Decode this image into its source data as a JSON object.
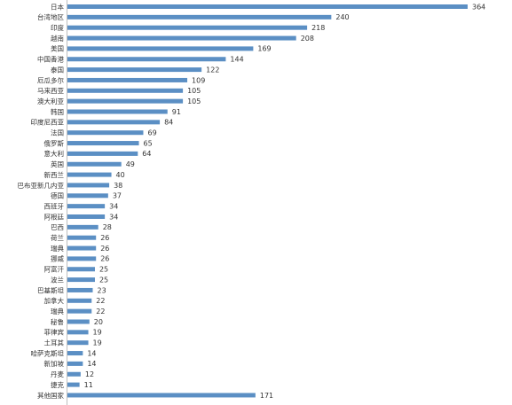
{
  "chart_data": {
    "type": "bar",
    "orientation": "horizontal",
    "title": "",
    "xlabel": "",
    "ylabel": "",
    "xlim": [
      0,
      364
    ],
    "grid": false,
    "legend": "none",
    "bar_color": "#5b8fc4",
    "categories": [
      "日本",
      "台湾地区",
      "印度",
      "越南",
      "美国",
      "中国香港",
      "泰国",
      "厄瓜多尔",
      "马来西亚",
      "澳大利亚",
      "韩国",
      "印度尼西亚",
      "法国",
      "俄罗斯",
      "意大利",
      "英国",
      "新西兰",
      "巴布亚新几内亚",
      "德国",
      "西班牙",
      "阿根廷",
      "巴西",
      "荷兰",
      "瑞典",
      "挪威",
      "阿富汗",
      "波兰",
      "巴基斯坦",
      "加拿大",
      "瑞典",
      "秘鲁",
      "菲律宾",
      "土耳其",
      "哈萨克斯坦",
      "新加坡",
      "丹麦",
      "捷克",
      "其他国家"
    ],
    "values": [
      364,
      240,
      218,
      208,
      169,
      144,
      122,
      109,
      105,
      105,
      91,
      84,
      69,
      65,
      64,
      49,
      40,
      38,
      37,
      34,
      34,
      28,
      26,
      26,
      26,
      25,
      25,
      23,
      22,
      22,
      20,
      19,
      19,
      14,
      14,
      12,
      11,
      171
    ]
  }
}
